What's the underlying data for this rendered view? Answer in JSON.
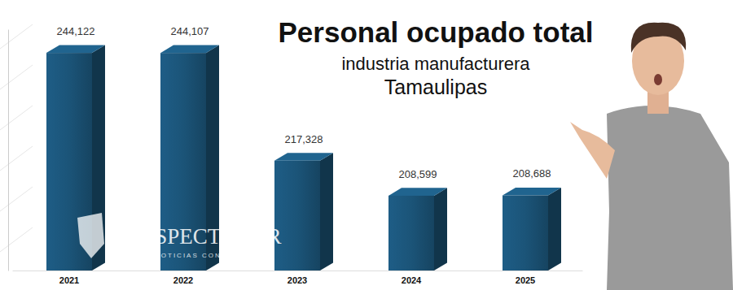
{
  "chart_data": {
    "type": "bar",
    "title": "Personal ocupado total",
    "subtitle": [
      "industria manufacturera",
      "Tamaulipas"
    ],
    "annotations": [
      "EL ESPECTADOR",
      "NOTICIAS CON ENFOQUE"
    ],
    "categories": [
      "2021",
      "2022",
      "2023",
      "2024",
      "2025"
    ],
    "values": [
      244122,
      244107,
      217328,
      208599,
      208688
    ],
    "value_labels": [
      "244,122",
      "244,107",
      "217,328",
      "208,599",
      "208,688"
    ],
    "color": "#1b5478",
    "ylim": [
      190000,
      250000
    ],
    "data_labels": true,
    "tick_labels": "x",
    "grid": false
  }
}
